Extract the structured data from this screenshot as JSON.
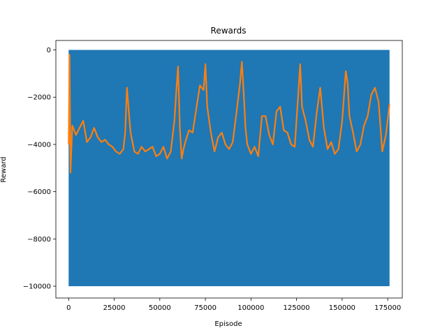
{
  "chart_data": {
    "type": "line",
    "title": "Rewards",
    "xlabel": "Episode",
    "ylabel": "Reward",
    "xlim": [
      -7000,
      183000
    ],
    "ylim": [
      -10500,
      400
    ],
    "xticks": [
      0,
      25000,
      50000,
      75000,
      100000,
      125000,
      150000,
      175000
    ],
    "yticks": [
      0,
      -2000,
      -4000,
      -6000,
      -8000,
      -10000
    ],
    "xtick_labels": [
      "0",
      "25000",
      "50000",
      "75000",
      "100000",
      "125000",
      "150000",
      "175000"
    ],
    "ytick_labels": [
      "0",
      "−2000",
      "−4000",
      "−6000",
      "−8000",
      "−10000"
    ],
    "grid": false,
    "series": [
      {
        "color": "#1f77b4",
        "style": "dense band",
        "x_range": [
          0,
          176000
        ],
        "y_range": [
          -10000,
          0
        ]
      },
      {
        "color": "#ff7f0e",
        "x": [
          0,
          500,
          1000,
          2000,
          4000,
          6000,
          8000,
          10000,
          12000,
          14000,
          16000,
          18000,
          20000,
          22000,
          24000,
          26000,
          28000,
          30000,
          31000,
          32000,
          33000,
          34000,
          36000,
          38000,
          40000,
          42000,
          44000,
          46000,
          48000,
          50000,
          52000,
          54000,
          56000,
          58000,
          59000,
          60000,
          61000,
          62000,
          63000,
          64000,
          66000,
          68000,
          70000,
          72000,
          74000,
          75000,
          76000,
          78000,
          80000,
          82000,
          84000,
          86000,
          88000,
          90000,
          92000,
          94000,
          95000,
          96000,
          97000,
          98000,
          100000,
          102000,
          104000,
          106000,
          108000,
          110000,
          112000,
          114000,
          116000,
          118000,
          120000,
          122000,
          124000,
          126000,
          127000,
          128000,
          130000,
          132000,
          134000,
          136000,
          138000,
          140000,
          142000,
          144000,
          146000,
          148000,
          150000,
          152000,
          153000,
          154000,
          156000,
          158000,
          160000,
          162000,
          164000,
          166000,
          168000,
          170000,
          172000,
          174000,
          176000
        ],
        "y": [
          -4000,
          -200,
          -5200,
          -3200,
          -3600,
          -3300,
          -3000,
          -3900,
          -3700,
          -3300,
          -3700,
          -3900,
          -3800,
          -4000,
          -4100,
          -4300,
          -4400,
          -4200,
          -3500,
          -1600,
          -2600,
          -3500,
          -4300,
          -4400,
          -4100,
          -4300,
          -4200,
          -4100,
          -4500,
          -4400,
          -4100,
          -4600,
          -4300,
          -3000,
          -1800,
          -700,
          -3300,
          -4600,
          -4200,
          -3900,
          -3400,
          -3500,
          -2500,
          -1500,
          -1700,
          -600,
          -2400,
          -3500,
          -4300,
          -3700,
          -3500,
          -4000,
          -4200,
          -3900,
          -2700,
          -1400,
          -500,
          -1800,
          -3300,
          -4000,
          -4400,
          -4100,
          -4500,
          -2800,
          -2800,
          -3600,
          -4000,
          -2600,
          -2400,
          -3400,
          -3500,
          -4000,
          -4100,
          -1800,
          -600,
          -2400,
          -3000,
          -3800,
          -4100,
          -2700,
          -1600,
          -3300,
          -4200,
          -3900,
          -4400,
          -4200,
          -3000,
          -900,
          -1400,
          -2800,
          -3500,
          -4300,
          -4000,
          -3200,
          -2800,
          -1900,
          -1600,
          -2200,
          -4300,
          -3600,
          -2300
        ]
      }
    ]
  }
}
